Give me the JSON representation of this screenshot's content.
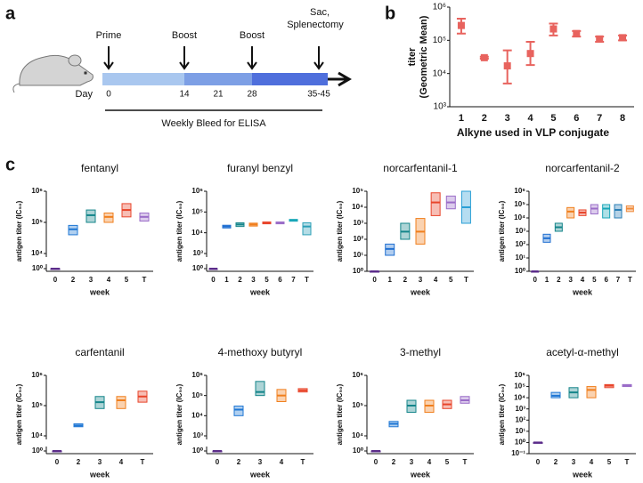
{
  "panel_labels": [
    "a",
    "b",
    "c"
  ],
  "timeline": {
    "events": [
      "Prime",
      "Boost",
      "Boost",
      [
        "Sac,",
        "Splenectomy"
      ]
    ],
    "day_label": "Day",
    "days": [
      "0",
      "14",
      "21",
      "28",
      "35-45"
    ],
    "bleed": "Weekly Bleed for ELISA"
  },
  "chart_data": [
    {
      "type": "errorbar",
      "ylabel": [
        "titer",
        "(Geometric Mean)"
      ],
      "xlabel": "Alkyne used in VLP conjugate",
      "categories": [
        "1",
        "2",
        "3",
        "4",
        "5",
        "6",
        "7",
        "8"
      ],
      "values": [
        280000,
        30000,
        17000,
        40000,
        220000,
        160000,
        110000,
        120000
      ],
      "low": [
        160000,
        28000,
        5000,
        18000,
        140000,
        130000,
        90000,
        100000
      ],
      "high": [
        450000,
        32000,
        50000,
        90000,
        320000,
        190000,
        130000,
        140000
      ],
      "color": "#e8635e",
      "log_y": true,
      "ylim": [
        1000,
        1000000
      ],
      "yticks": [
        {
          "value": 1000,
          "label": "10³"
        },
        {
          "value": 10000,
          "label": "10⁴"
        },
        {
          "value": 100000,
          "label": "10⁵"
        },
        {
          "value": 1000000,
          "label": "10⁶"
        }
      ]
    },
    {
      "type": "box",
      "title": "fentanyl",
      "ylabel": "antigen titer (IC₅₀)",
      "xlabel": "week",
      "categories": [
        "0",
        "2",
        "3",
        "4",
        "5",
        "T"
      ],
      "colors": [
        "#5b2c8a",
        "#1f77d4",
        "#14858a",
        "#f07f1d",
        "#e8452b",
        "#9a6cc8"
      ],
      "values": [
        1,
        60000,
        170000,
        150000,
        250000,
        150000
      ],
      "low": [
        1,
        40000,
        100000,
        100000,
        150000,
        110000
      ],
      "high": [
        1,
        80000,
        250000,
        200000,
        400000,
        200000
      ],
      "log_y": true,
      "ylim": [
        1,
        1000000
      ],
      "ybreak": [
        1,
        10000
      ],
      "yticks": [
        {
          "value": 1,
          "label": "10⁰"
        },
        {
          "value": 10000,
          "label": "10⁴"
        },
        {
          "value": 100000,
          "label": "10⁵"
        },
        {
          "value": 1000000,
          "label": "10⁶"
        }
      ]
    },
    {
      "type": "box",
      "title": "furanyl benzyl",
      "ylabel": "antigen titer (IC₅₀)",
      "xlabel": "week",
      "categories": [
        "0",
        "1",
        "2",
        "3",
        "5",
        "6",
        "7",
        "T"
      ],
      "colors": [
        "#5b2c8a",
        "#1f6fd1",
        "#14858a",
        "#f07f1d",
        "#e8452b",
        "#9a6cc8",
        "#18a6b8",
        "#2a9fb6"
      ],
      "values": [
        1,
        20000,
        25000,
        25000,
        30000,
        30000,
        40000,
        20000
      ],
      "low": [
        1,
        17000,
        20000,
        21000,
        27000,
        27000,
        36000,
        8000
      ],
      "high": [
        1,
        23000,
        30000,
        29000,
        33000,
        33000,
        44000,
        30000
      ],
      "log_y": true,
      "ylim": [
        1,
        1000000
      ],
      "ybreak": [
        1,
        1000
      ],
      "yticks": [
        {
          "value": 1,
          "label": "10⁰"
        },
        {
          "value": 1000,
          "label": "10³"
        },
        {
          "value": 10000,
          "label": "10⁴"
        },
        {
          "value": 100000,
          "label": "10⁵"
        },
        {
          "value": 1000000,
          "label": "10⁶"
        }
      ]
    },
    {
      "type": "box",
      "title": "norcarfentanil-1",
      "ylabel": "antigen titer (IC₅₀)",
      "xlabel": "week",
      "categories": [
        "0",
        "1",
        "2",
        "3",
        "4",
        "5",
        "T"
      ],
      "colors": [
        "#5b2c8a",
        "#1f6fd1",
        "#14858a",
        "#f07f1d",
        "#e8452b",
        "#9a6cc8",
        "#2a9fd6"
      ],
      "values": [
        1,
        25,
        300,
        300,
        20000,
        20000,
        10000
      ],
      "low": [
        1,
        10,
        100,
        50,
        3000,
        8000,
        1000
      ],
      "high": [
        1,
        50,
        1000,
        2000,
        80000,
        50000,
        100000
      ],
      "log_y": true,
      "ylim": [
        1,
        100000
      ],
      "yticks": [
        {
          "value": 1,
          "label": "10⁰"
        },
        {
          "value": 10,
          "label": "10¹"
        },
        {
          "value": 100,
          "label": "10²"
        },
        {
          "value": 1000,
          "label": "10³"
        },
        {
          "value": 10000,
          "label": "10⁴"
        },
        {
          "value": 100000,
          "label": "10⁵"
        }
      ]
    },
    {
      "type": "box",
      "title": "norcarfentanil-2",
      "ylabel": "antigen titer (IC₅₀)",
      "xlabel": "week",
      "categories": [
        "0",
        "1",
        "2",
        "3",
        "4",
        "5",
        "6",
        "7",
        "T"
      ],
      "colors": [
        "#5b2c8a",
        "#1f6fd1",
        "#14858a",
        "#f07f1d",
        "#e8452b",
        "#9a6cc8",
        "#18a6b8",
        "#2a7fb6",
        "#f08a3a"
      ],
      "values": [
        1,
        300,
        2000,
        30000,
        25000,
        50000,
        50000,
        40000,
        50000
      ],
      "low": [
        1,
        150,
        1000,
        10000,
        15000,
        20000,
        10000,
        10000,
        30000
      ],
      "high": [
        1,
        600,
        4000,
        60000,
        40000,
        100000,
        100000,
        100000,
        80000
      ],
      "log_y": true,
      "ylim": [
        1,
        1000000
      ],
      "yticks": [
        {
          "value": 1,
          "label": "10⁰"
        },
        {
          "value": 10,
          "label": "10¹"
        },
        {
          "value": 100,
          "label": "10²"
        },
        {
          "value": 1000,
          "label": "10³"
        },
        {
          "value": 10000,
          "label": "10⁴"
        },
        {
          "value": 100000,
          "label": "10⁵"
        },
        {
          "value": 1000000,
          "label": "10⁶"
        }
      ]
    },
    {
      "type": "box",
      "title": "carfentanil",
      "ylabel": "antigen titer (IC₅₀)",
      "xlabel": "week",
      "categories": [
        "0",
        "2",
        "3",
        "4",
        "T"
      ],
      "colors": [
        "#5b2c8a",
        "#1f77d4",
        "#14858a",
        "#f07f1d",
        "#e8452b"
      ],
      "values": [
        1,
        22000,
        130000,
        150000,
        200000
      ],
      "low": [
        1,
        20000,
        80000,
        80000,
        130000
      ],
      "high": [
        1,
        25000,
        200000,
        200000,
        300000
      ],
      "log_y": true,
      "ylim": [
        1,
        1000000
      ],
      "ybreak": [
        1,
        10000
      ],
      "yticks": [
        {
          "value": 1,
          "label": "10⁰"
        },
        {
          "value": 10000,
          "label": "10⁴"
        },
        {
          "value": 100000,
          "label": "10⁵"
        },
        {
          "value": 1000000,
          "label": "10⁶"
        }
      ]
    },
    {
      "type": "box",
      "title": "4-methoxy butyryl",
      "ylabel": "antigen titer (IC₅₀)",
      "xlabel": "week",
      "categories": [
        "0",
        "2",
        "3",
        "4",
        "T"
      ],
      "colors": [
        "#5b2c8a",
        "#1f77d4",
        "#14858a",
        "#f07f1d",
        "#e8452b"
      ],
      "values": [
        1,
        20000,
        150000,
        100000,
        180000
      ],
      "low": [
        1,
        10000,
        100000,
        50000,
        150000
      ],
      "high": [
        1,
        30000,
        500000,
        200000,
        220000
      ],
      "log_y": true,
      "ylim": [
        1,
        1000000
      ],
      "ybreak": [
        1,
        1000
      ],
      "yticks": [
        {
          "value": 1,
          "label": "10⁰"
        },
        {
          "value": 1000,
          "label": "10³"
        },
        {
          "value": 10000,
          "label": "10⁴"
        },
        {
          "value": 100000,
          "label": "10⁵"
        },
        {
          "value": 1000000,
          "label": "10⁶"
        }
      ]
    },
    {
      "type": "box",
      "title": "3-methyl",
      "ylabel": "antigen titer (IC₅₀)",
      "xlabel": "week",
      "categories": [
        "0",
        "2",
        "3",
        "4",
        "5",
        "T"
      ],
      "colors": [
        "#5b2c8a",
        "#1f77d4",
        "#14858a",
        "#f07f1d",
        "#e8452b",
        "#9a6cc8"
      ],
      "values": [
        1,
        25000,
        100000,
        100000,
        110000,
        150000
      ],
      "low": [
        1,
        20000,
        60000,
        60000,
        80000,
        120000
      ],
      "high": [
        1,
        30000,
        150000,
        150000,
        150000,
        200000
      ],
      "log_y": true,
      "ylim": [
        1,
        1000000
      ],
      "ybreak": [
        1,
        10000
      ],
      "yticks": [
        {
          "value": 1,
          "label": "10⁰"
        },
        {
          "value": 10000,
          "label": "10⁴"
        },
        {
          "value": 100000,
          "label": "10⁵"
        },
        {
          "value": 1000000,
          "label": "10⁶"
        }
      ]
    },
    {
      "type": "box",
      "title": "acetyl-α-methyl",
      "ylabel": "antigen titer (IC₅₀)",
      "xlabel": "week",
      "categories": [
        "0",
        "2",
        "3",
        "4",
        "5",
        "T"
      ],
      "colors": [
        "#5b2c8a",
        "#1f77d4",
        "#14858a",
        "#f07f1d",
        "#e8452b",
        "#9a6cc8"
      ],
      "values": [
        1,
        15000,
        30000,
        50000,
        120000,
        120000
      ],
      "low": [
        1,
        10000,
        10000,
        10000,
        80000,
        100000
      ],
      "high": [
        1,
        30000,
        80000,
        100000,
        150000,
        150000
      ],
      "log_y": true,
      "ylim": [
        0.1,
        1000000
      ],
      "yticks": [
        {
          "value": 0.1,
          "label": "10⁻¹"
        },
        {
          "value": 1,
          "label": "10⁰"
        },
        {
          "value": 10,
          "label": "10¹"
        },
        {
          "value": 100,
          "label": "10²"
        },
        {
          "value": 1000,
          "label": "10³"
        },
        {
          "value": 10000,
          "label": "10⁴"
        },
        {
          "value": 100000,
          "label": "10⁵"
        },
        {
          "value": 1000000,
          "label": "10⁶"
        }
      ]
    }
  ]
}
